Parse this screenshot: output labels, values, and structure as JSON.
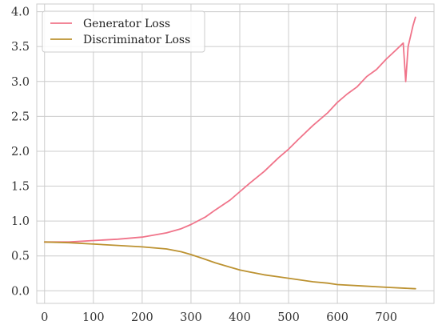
{
  "chart_data": {
    "type": "line",
    "title": "",
    "xlabel": "",
    "ylabel": "",
    "xlim": [
      -16,
      798
    ],
    "ylim": [
      -0.18,
      4.11
    ],
    "xticks": [
      0,
      100,
      200,
      300,
      400,
      500,
      600,
      700
    ],
    "yticks": [
      0.0,
      0.5,
      1.0,
      1.5,
      2.0,
      2.5,
      3.0,
      3.5,
      4.0
    ],
    "xtick_labels": [
      "0",
      "100",
      "200",
      "300",
      "400",
      "500",
      "600",
      "700"
    ],
    "ytick_labels": [
      "0.0",
      "0.5",
      "1.0",
      "1.5",
      "2.0",
      "2.5",
      "3.0",
      "3.5",
      "4.0"
    ],
    "grid": true,
    "legend_position": "top-left",
    "series": [
      {
        "name": "Generator Loss",
        "color": "#f0748a",
        "x": [
          0,
          50,
          100,
          150,
          200,
          250,
          280,
          300,
          330,
          350,
          380,
          400,
          420,
          450,
          480,
          500,
          520,
          550,
          580,
          600,
          620,
          640,
          660,
          680,
          700,
          720,
          735,
          740,
          745,
          750,
          755,
          760
        ],
        "y": [
          0.7,
          0.7,
          0.72,
          0.74,
          0.77,
          0.83,
          0.89,
          0.95,
          1.06,
          1.16,
          1.3,
          1.42,
          1.54,
          1.71,
          1.91,
          2.03,
          2.17,
          2.37,
          2.55,
          2.7,
          2.82,
          2.92,
          3.07,
          3.17,
          3.32,
          3.45,
          3.55,
          3.0,
          3.5,
          3.65,
          3.8,
          3.92
        ]
      },
      {
        "name": "Discriminator Loss",
        "color": "#bc9231",
        "x": [
          0,
          50,
          100,
          150,
          200,
          250,
          280,
          300,
          330,
          350,
          380,
          400,
          420,
          450,
          480,
          500,
          520,
          550,
          580,
          600,
          650,
          700,
          760
        ],
        "y": [
          0.7,
          0.69,
          0.67,
          0.65,
          0.63,
          0.6,
          0.56,
          0.52,
          0.45,
          0.4,
          0.34,
          0.3,
          0.27,
          0.23,
          0.2,
          0.18,
          0.16,
          0.13,
          0.11,
          0.09,
          0.07,
          0.05,
          0.03
        ]
      }
    ]
  }
}
